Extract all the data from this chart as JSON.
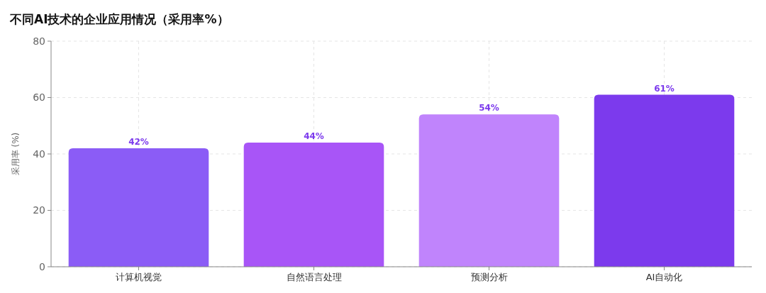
{
  "chart_data": {
    "type": "bar",
    "title": "不同AI技术的企业应用情况（采用率%）",
    "ylabel": "采用率 (%)",
    "categories": [
      "计算机视觉",
      "自然语言处理",
      "预测分析",
      "AI自动化"
    ],
    "values": [
      42,
      44,
      54,
      61
    ],
    "colors": [
      "#8b5cf6",
      "#a855f7",
      "#c084fc",
      "#7c3aed"
    ],
    "value_labels": [
      "42%",
      "44%",
      "54%",
      "61%"
    ],
    "ylim": [
      0,
      80
    ],
    "yticks": [
      0,
      20,
      40,
      60,
      80
    ],
    "grid": true
  }
}
